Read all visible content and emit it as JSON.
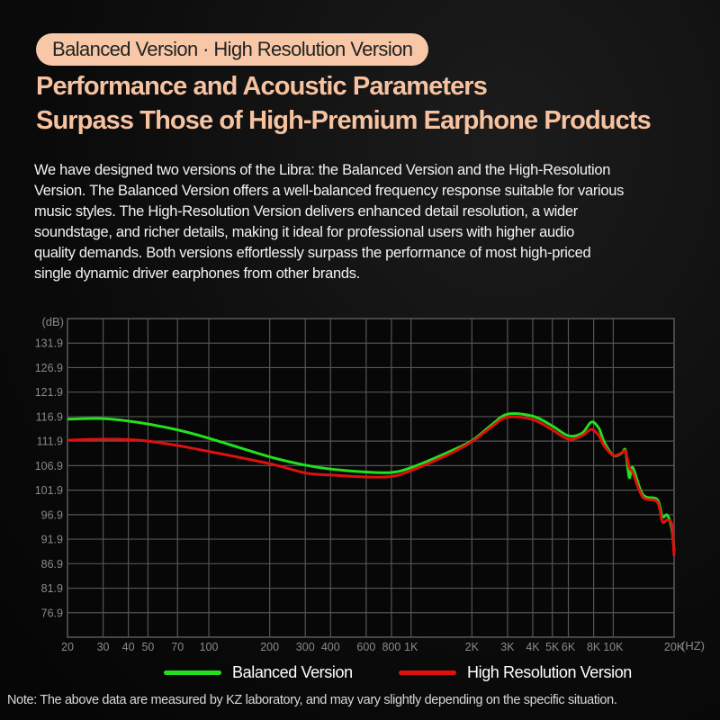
{
  "badge": "Balanced Version · High Resolution Version",
  "title_lines": [
    "Performance and Acoustic Parameters",
    "Surpass Those of High-Premium Earphone Products"
  ],
  "description_lines": [
    "We have designed two versions of the Libra: the Balanced Version and the High-Resolution",
    "Version. The Balanced Version offers a well-balanced frequency response suitable for various",
    "music styles. The High-Resolution Version delivers enhanced detail resolution, a wider",
    "soundstage, and richer details, making it ideal for professional users with higher audio",
    "quality demands. Both versions effortlessly surpass the performance of most high-priced",
    "single dynamic driver earphones from other brands."
  ],
  "note": "Note: The above data are measured by KZ laboratory, and may vary slightly depending on the specific situation.",
  "colors": {
    "accent": "#f7c7a8",
    "title": "#f7c2a0",
    "balanced": "#22e01e",
    "high_resolution": "#e01010",
    "grid": "#555555"
  },
  "chart_data": {
    "type": "line",
    "ylabel": "(dB)",
    "xlabel": "(HZ)",
    "x_scale": "log",
    "xlim": [
      20,
      20000
    ],
    "ylim": [
      71.9,
      136.9
    ],
    "grid": true,
    "legend_placement": "bottom",
    "y_ticks": [
      131.9,
      126.9,
      121.9,
      116.9,
      111.9,
      106.9,
      101.9,
      96.9,
      91.9,
      86.9,
      81.9,
      76.9
    ],
    "x_ticks": [
      {
        "value": 20,
        "label": "20"
      },
      {
        "value": 30,
        "label": "30"
      },
      {
        "value": 40,
        "label": "40"
      },
      {
        "value": 50,
        "label": "50"
      },
      {
        "value": 70,
        "label": "70"
      },
      {
        "value": 100,
        "label": "100"
      },
      {
        "value": 200,
        "label": "200"
      },
      {
        "value": 300,
        "label": "300"
      },
      {
        "value": 400,
        "label": "400"
      },
      {
        "value": 600,
        "label": "600"
      },
      {
        "value": 800,
        "label": "800"
      },
      {
        "value": 1000,
        "label": "1K"
      },
      {
        "value": 2000,
        "label": "2K"
      },
      {
        "value": 3000,
        "label": "3K"
      },
      {
        "value": 4000,
        "label": "4K"
      },
      {
        "value": 5000,
        "label": "5K"
      },
      {
        "value": 6000,
        "label": "6K"
      },
      {
        "value": 8000,
        "label": "8K"
      },
      {
        "value": 10000,
        "label": "10K"
      },
      {
        "value": 20000,
        "label": "20K"
      }
    ],
    "series": [
      {
        "name": "Balanced Version",
        "color": "#22e01e",
        "x": [
          20,
          30,
          40,
          50,
          70,
          100,
          200,
          300,
          400,
          600,
          800,
          1000,
          1500,
          2000,
          2500,
          3000,
          4000,
          5000,
          6000,
          7000,
          7800,
          8500,
          9000,
          10000,
          11000,
          11500,
          12000,
          12500,
          14000,
          16500,
          17500,
          18500,
          19500,
          20000
        ],
        "y": [
          116.4,
          116.5,
          116.0,
          115.4,
          114.2,
          112.5,
          108.7,
          107.0,
          106.2,
          105.6,
          105.5,
          106.5,
          109.5,
          112.0,
          115.2,
          117.4,
          117.0,
          115.0,
          113.0,
          113.5,
          115.8,
          114.5,
          111.8,
          109.0,
          109.4,
          110.0,
          104.5,
          106.5,
          101.0,
          100.0,
          96.5,
          96.8,
          94.0,
          89.5
        ]
      },
      {
        "name": "High Resolution Version",
        "color": "#e01010",
        "x": [
          20,
          30,
          40,
          50,
          70,
          100,
          200,
          300,
          400,
          600,
          800,
          1000,
          1500,
          2000,
          2500,
          3000,
          4000,
          5000,
          6000,
          7000,
          7800,
          8500,
          9000,
          10000,
          11000,
          11500,
          12000,
          12500,
          14000,
          16500,
          17500,
          18500,
          19500,
          20000
        ],
        "y": [
          112.1,
          112.3,
          112.2,
          111.9,
          111.0,
          109.8,
          107.3,
          105.4,
          105.0,
          104.6,
          104.7,
          105.9,
          109.0,
          111.8,
          114.8,
          116.8,
          116.3,
          114.2,
          112.3,
          113.0,
          114.3,
          113.0,
          111.0,
          109.0,
          109.5,
          109.8,
          106.5,
          105.5,
          100.5,
          99.5,
          95.5,
          95.8,
          94.8,
          88.5
        ]
      }
    ]
  }
}
